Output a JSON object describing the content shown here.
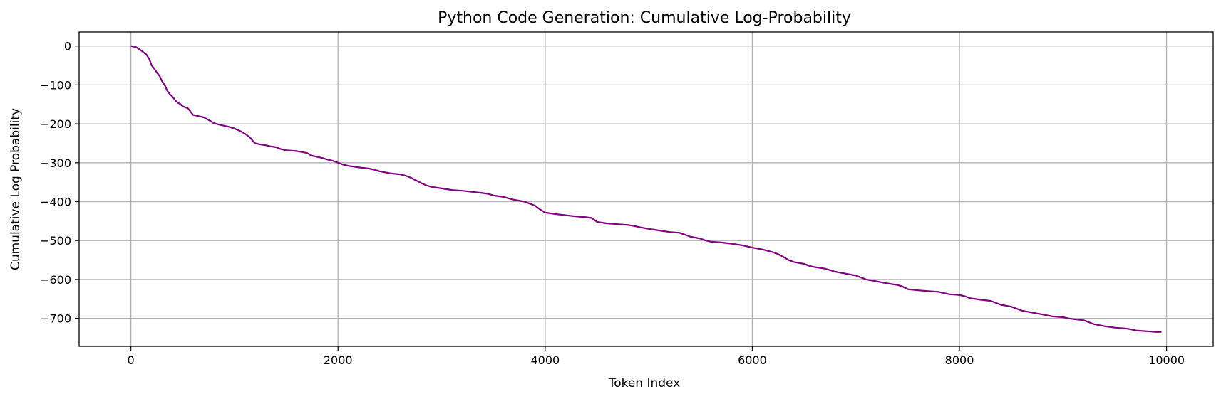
{
  "chart_data": {
    "type": "line",
    "title": "Python Code Generation: Cumulative Log-Probability",
    "xlabel": "Token Index",
    "ylabel": "Cumulative Log Probability",
    "xlim": [
      -500,
      10450
    ],
    "ylim": [
      -772,
      36
    ],
    "xticks": [
      0,
      2000,
      4000,
      6000,
      8000,
      10000
    ],
    "yticks": [
      0,
      -100,
      -200,
      -300,
      -400,
      -500,
      -600,
      -700
    ],
    "xtick_labels": [
      "0",
      "2000",
      "4000",
      "6000",
      "8000",
      "10000"
    ],
    "ytick_labels": [
      "0",
      "−100",
      "−200",
      "−300",
      "−400",
      "−500",
      "−600",
      "−700"
    ],
    "grid": true,
    "line_color": "#800080",
    "series": [
      {
        "x": [
          0,
          50,
          80,
          100,
          150,
          180,
          200,
          230,
          250,
          280,
          300,
          330,
          350,
          380,
          400,
          430,
          450,
          480,
          500,
          550,
          580,
          600,
          650,
          700,
          750,
          800,
          850,
          900,
          950,
          1000,
          1050,
          1100,
          1150,
          1180,
          1200,
          1250,
          1300,
          1350,
          1400,
          1450,
          1500,
          1600,
          1700,
          1750,
          1800,
          1850,
          1900,
          1950,
          2000,
          2050,
          2100,
          2200,
          2300,
          2350,
          2400,
          2500,
          2600,
          2650,
          2700,
          2750,
          2800,
          2850,
          2900,
          3000,
          3100,
          3200,
          3300,
          3400,
          3450,
          3500,
          3600,
          3650,
          3700,
          3800,
          3850,
          3900,
          3950,
          4000,
          4100,
          4200,
          4300,
          4400,
          4450,
          4500,
          4600,
          4700,
          4800,
          4850,
          4900,
          5000,
          5050,
          5100,
          5200,
          5300,
          5350,
          5400,
          5500,
          5550,
          5600,
          5700,
          5800,
          5900,
          6000,
          6100,
          6200,
          6250,
          6300,
          6350,
          6400,
          6500,
          6550,
          6600,
          6700,
          6750,
          6800,
          6900,
          7000,
          7050,
          7100,
          7200,
          7300,
          7400,
          7450,
          7500,
          7600,
          7700,
          7800,
          7850,
          7900,
          8000,
          8050,
          8100,
          8200,
          8300,
          8350,
          8400,
          8500,
          8550,
          8600,
          8700,
          8800,
          8900,
          9000,
          9050,
          9100,
          9200,
          9250,
          9300,
          9400,
          9450,
          9500,
          9600,
          9650,
          9700,
          9800,
          9850,
          9900,
          9950
        ],
        "y": [
          0,
          -3,
          -8,
          -12,
          -22,
          -35,
          -50,
          -60,
          -68,
          -78,
          -90,
          -102,
          -115,
          -125,
          -130,
          -140,
          -145,
          -150,
          -155,
          -160,
          -170,
          -177,
          -180,
          -183,
          -190,
          -198,
          -202,
          -205,
          -208,
          -212,
          -218,
          -225,
          -235,
          -245,
          -250,
          -253,
          -255,
          -258,
          -260,
          -265,
          -268,
          -270,
          -275,
          -282,
          -285,
          -288,
          -292,
          -295,
          -300,
          -305,
          -308,
          -312,
          -315,
          -318,
          -322,
          -327,
          -330,
          -333,
          -338,
          -345,
          -352,
          -358,
          -362,
          -366,
          -370,
          -372,
          -375,
          -378,
          -380,
          -384,
          -388,
          -392,
          -395,
          -400,
          -405,
          -410,
          -420,
          -428,
          -432,
          -435,
          -438,
          -440,
          -442,
          -452,
          -456,
          -458,
          -460,
          -462,
          -465,
          -470,
          -472,
          -474,
          -478,
          -480,
          -485,
          -490,
          -495,
          -500,
          -503,
          -505,
          -508,
          -512,
          -518,
          -523,
          -530,
          -535,
          -542,
          -550,
          -555,
          -560,
          -565,
          -568,
          -572,
          -576,
          -580,
          -585,
          -590,
          -595,
          -600,
          -605,
          -610,
          -614,
          -618,
          -625,
          -628,
          -630,
          -632,
          -635,
          -638,
          -640,
          -643,
          -648,
          -652,
          -655,
          -660,
          -665,
          -670,
          -675,
          -680,
          -685,
          -690,
          -695,
          -697,
          -700,
          -702,
          -705,
          -710,
          -715,
          -720,
          -722,
          -724,
          -726,
          -728,
          -731,
          -733,
          -734,
          -735,
          -735
        ]
      }
    ]
  }
}
